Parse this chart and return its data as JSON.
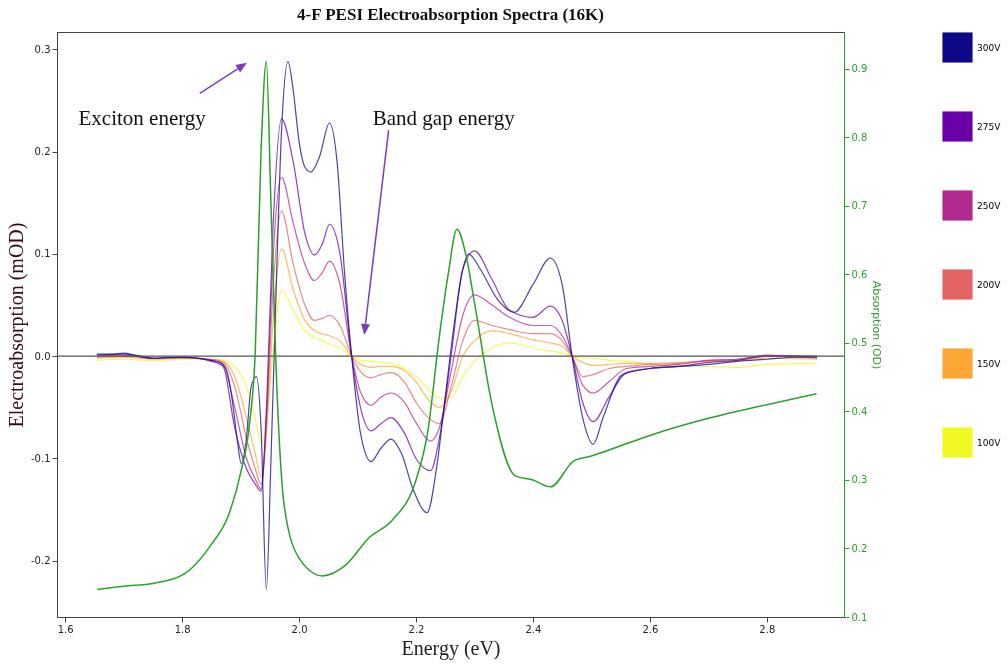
{
  "chart_data": {
    "type": "line",
    "title": "4-F PESI Electroabsorption Spectra (16K)",
    "xlabel": "Energy (eV)",
    "ylabel": "Electroabsorption (mOD)",
    "y2label": "Absorption (OD)",
    "xlim": [
      1.586,
      2.932
    ],
    "ylim": [
      -0.255,
      0.317
    ],
    "y2lim": [
      0.1,
      0.954
    ],
    "xticks": [
      1.6,
      1.8,
      {
        "value": 2,
        "label": "2.0"
      },
      2.2,
      2.4,
      2.6,
      2.8
    ],
    "yticks": [
      -0.2,
      -0.1,
      {
        "value": 0,
        "label": "0.0"
      },
      0.1,
      0.2,
      0.3
    ],
    "y2ticks": [
      0.1,
      0.2,
      0.3,
      0.4,
      0.5,
      0.6,
      0.7,
      0.8,
      0.9
    ],
    "legend": "right",
    "ref_lines": [
      {
        "axis": "y",
        "value": 0,
        "color": "#555555"
      }
    ],
    "annotations": [
      "Exciton energy",
      "Band gap energy"
    ],
    "series": [
      {
        "name": "100V",
        "color": "#f0f921",
        "x": [
          1.655,
          1.7,
          1.75,
          1.8,
          1.85,
          1.87,
          1.89,
          1.91,
          1.925,
          1.935,
          1.945,
          1.955,
          1.97,
          1.99,
          2.01,
          2.026,
          2.04,
          2.052,
          2.07,
          2.09,
          2.105,
          2.123,
          2.14,
          2.157,
          2.18,
          2.2,
          2.225,
          2.24,
          2.26,
          2.28,
          2.3,
          2.33,
          2.36,
          2.4,
          2.43,
          2.45,
          2.467,
          2.485,
          2.503,
          2.53,
          2.56,
          2.6,
          2.65,
          2.7,
          2.75,
          2.8,
          2.885
        ],
        "values": [
          -0.004,
          -0.003,
          -0.004,
          -0.003,
          -0.003,
          -0.004,
          -0.01,
          -0.03,
          -0.06,
          -0.085,
          -0.06,
          0.0,
          0.065,
          0.045,
          0.025,
          0.018,
          0.015,
          0.012,
          0.008,
          0.0,
          -0.004,
          -0.005,
          -0.006,
          -0.007,
          -0.012,
          -0.02,
          -0.035,
          -0.041,
          -0.04,
          -0.02,
          -0.005,
          0.008,
          0.013,
          0.008,
          0.005,
          0.003,
          0.0,
          -0.002,
          -0.002,
          -0.004,
          -0.005,
          -0.008,
          -0.01,
          -0.01,
          -0.011,
          -0.008,
          -0.007
        ]
      },
      {
        "name": "150V",
        "color": "#fca636",
        "x": [
          1.655,
          1.7,
          1.75,
          1.8,
          1.85,
          1.87,
          1.89,
          1.91,
          1.925,
          1.935,
          1.945,
          1.955,
          1.97,
          1.99,
          2.01,
          2.026,
          2.04,
          2.052,
          2.07,
          2.09,
          2.105,
          2.123,
          2.14,
          2.157,
          2.18,
          2.2,
          2.225,
          2.24,
          2.26,
          2.28,
          2.3,
          2.33,
          2.36,
          2.4,
          2.43,
          2.45,
          2.467,
          2.485,
          2.503,
          2.53,
          2.56,
          2.6,
          2.65,
          2.7,
          2.75,
          2.8,
          2.885
        ],
        "values": [
          -0.002,
          -0.001,
          -0.003,
          -0.002,
          -0.003,
          -0.005,
          -0.02,
          -0.06,
          -0.095,
          -0.118,
          -0.07,
          0.03,
          0.105,
          0.065,
          0.035,
          0.025,
          0.022,
          0.02,
          0.015,
          0.0,
          -0.008,
          -0.011,
          -0.01,
          -0.01,
          -0.014,
          -0.025,
          -0.045,
          -0.05,
          -0.035,
          0.0,
          0.015,
          0.025,
          0.022,
          0.016,
          0.013,
          0.01,
          0.0,
          -0.006,
          -0.009,
          -0.008,
          -0.007,
          -0.007,
          -0.006,
          -0.005,
          -0.004,
          -0.002,
          -0.003
        ]
      },
      {
        "name": "200V",
        "color": "#e16462",
        "x": [
          1.655,
          1.7,
          1.75,
          1.8,
          1.85,
          1.87,
          1.89,
          1.91,
          1.925,
          1.935,
          1.945,
          1.955,
          1.97,
          1.99,
          2.01,
          2.026,
          2.04,
          2.052,
          2.07,
          2.09,
          2.105,
          2.123,
          2.14,
          2.157,
          2.18,
          2.2,
          2.225,
          2.24,
          2.26,
          2.28,
          2.3,
          2.33,
          2.36,
          2.4,
          2.43,
          2.45,
          2.467,
          2.485,
          2.503,
          2.53,
          2.56,
          2.6,
          2.65,
          2.7,
          2.75,
          2.8,
          2.885
        ],
        "values": [
          -0.001,
          0.0,
          -0.002,
          -0.002,
          -0.003,
          -0.006,
          -0.03,
          -0.08,
          -0.11,
          -0.125,
          -0.06,
          0.06,
          0.142,
          0.09,
          0.05,
          0.035,
          0.037,
          0.04,
          0.03,
          0.0,
          -0.015,
          -0.021,
          -0.018,
          -0.016,
          -0.025,
          -0.045,
          -0.062,
          -0.066,
          -0.03,
          0.015,
          0.035,
          0.03,
          0.026,
          0.022,
          0.022,
          0.015,
          0.0,
          -0.02,
          -0.018,
          -0.012,
          -0.01,
          -0.008,
          -0.007,
          -0.004,
          -0.003,
          0.0,
          -0.002
        ]
      },
      {
        "name": "250V",
        "color": "#b12a90",
        "x": [
          1.655,
          1.7,
          1.75,
          1.8,
          1.85,
          1.87,
          1.89,
          1.91,
          1.925,
          1.935,
          1.945,
          1.955,
          1.97,
          1.99,
          2.01,
          2.026,
          2.04,
          2.052,
          2.07,
          2.09,
          2.105,
          2.123,
          2.14,
          2.157,
          2.18,
          2.2,
          2.225,
          2.24,
          2.26,
          2.28,
          2.3,
          2.33,
          2.36,
          2.4,
          2.43,
          2.45,
          2.467,
          2.485,
          2.503,
          2.53,
          2.56,
          2.6,
          2.65,
          2.7,
          2.75,
          2.8,
          2.885
        ],
        "values": [
          0.0,
          0.001,
          -0.002,
          -0.001,
          -0.004,
          -0.008,
          -0.05,
          -0.1,
          -0.12,
          -0.13,
          -0.05,
          0.09,
          0.175,
          0.13,
          0.09,
          0.074,
          0.082,
          0.093,
          0.07,
          0.0,
          -0.035,
          -0.048,
          -0.04,
          -0.036,
          -0.045,
          -0.065,
          -0.083,
          -0.07,
          -0.015,
          0.04,
          0.06,
          0.05,
          0.038,
          0.03,
          0.03,
          0.02,
          0.0,
          -0.028,
          -0.036,
          -0.025,
          -0.012,
          -0.01,
          -0.008,
          -0.004,
          -0.003,
          0.001,
          -0.001
        ]
      },
      {
        "name": "275V",
        "color": "#6a00a8",
        "x": [
          1.655,
          1.7,
          1.75,
          1.8,
          1.85,
          1.87,
          1.89,
          1.91,
          1.925,
          1.935,
          1.945,
          1.955,
          1.97,
          1.99,
          2.01,
          2.026,
          2.04,
          2.052,
          2.07,
          2.09,
          2.105,
          2.123,
          2.14,
          2.157,
          2.18,
          2.2,
          2.225,
          2.24,
          2.26,
          2.28,
          2.3,
          2.33,
          2.36,
          2.4,
          2.43,
          2.45,
          2.467,
          2.485,
          2.503,
          2.53,
          2.56,
          2.6,
          2.65,
          2.7,
          2.75,
          2.8,
          2.885
        ],
        "values": [
          0.001,
          0.002,
          -0.002,
          -0.001,
          -0.005,
          -0.01,
          -0.07,
          -0.11,
          -0.125,
          -0.132,
          -0.04,
          0.12,
          0.232,
          0.19,
          0.12,
          0.099,
          0.11,
          0.129,
          0.1,
          0.0,
          -0.05,
          -0.073,
          -0.066,
          -0.06,
          -0.075,
          -0.1,
          -0.112,
          -0.08,
          0.0,
          0.085,
          0.103,
          0.075,
          0.045,
          0.038,
          0.049,
          0.035,
          0.0,
          -0.045,
          -0.064,
          -0.04,
          -0.016,
          -0.012,
          -0.01,
          -0.006,
          -0.004,
          0.0,
          0.0
        ]
      },
      {
        "name": "300V",
        "color": "#0d0887",
        "x": [
          1.655,
          1.68,
          1.7,
          1.72,
          1.75,
          1.78,
          1.8,
          1.83,
          1.85,
          1.865,
          1.875,
          1.885,
          1.895,
          1.901,
          1.91,
          1.918,
          1.927,
          1.935,
          1.944,
          1.952,
          1.96,
          1.97,
          1.981,
          1.99,
          2.0,
          2.01,
          2.02,
          2.035,
          2.052,
          2.065,
          2.078,
          2.09,
          2.105,
          2.123,
          2.14,
          2.157,
          2.175,
          2.195,
          2.219,
          2.235,
          2.25,
          2.265,
          2.28,
          2.29,
          2.31,
          2.34,
          2.368,
          2.4,
          2.43,
          2.45,
          2.467,
          2.485,
          2.503,
          2.52,
          2.553,
          2.6,
          2.65,
          2.7,
          2.75,
          2.8,
          2.85,
          2.885
        ],
        "values": [
          0.002,
          0.002,
          0.003,
          0.001,
          -0.002,
          -0.001,
          -0.001,
          -0.002,
          -0.004,
          -0.006,
          -0.012,
          -0.04,
          -0.085,
          -0.105,
          -0.08,
          -0.03,
          -0.02,
          -0.07,
          -0.228,
          -0.1,
          0.05,
          0.22,
          0.288,
          0.26,
          0.21,
          0.185,
          0.18,
          0.195,
          0.228,
          0.19,
          0.08,
          0.0,
          -0.075,
          -0.103,
          -0.09,
          -0.081,
          -0.095,
          -0.13,
          -0.153,
          -0.11,
          -0.04,
          0.03,
          0.085,
          0.1,
          0.085,
          0.055,
          0.043,
          0.07,
          0.096,
          0.07,
          0.0,
          -0.06,
          -0.086,
          -0.06,
          -0.018,
          -0.012,
          -0.01,
          -0.008,
          -0.005,
          -0.003,
          -0.001,
          -0.001
        ]
      },
      {
        "color": "#2ca02c",
        "axis": "y2",
        "x": [
          1.655,
          1.7,
          1.75,
          1.8,
          1.85,
          1.88,
          1.9,
          1.915,
          1.925,
          1.935,
          1.944,
          1.952,
          1.96,
          1.975,
          2.0,
          2.04,
          2.08,
          2.12,
          2.16,
          2.2,
          2.22,
          2.24,
          2.255,
          2.27,
          2.285,
          2.3,
          2.33,
          2.37,
          2.4,
          2.43,
          2.47,
          2.5,
          2.55,
          2.6,
          2.7,
          2.8,
          2.885
        ],
        "values": [
          0.14,
          0.145,
          0.149,
          0.161,
          0.206,
          0.25,
          0.31,
          0.38,
          0.485,
          0.78,
          0.911,
          0.7,
          0.48,
          0.26,
          0.186,
          0.16,
          0.176,
          0.216,
          0.242,
          0.3,
          0.37,
          0.51,
          0.6,
          0.666,
          0.63,
          0.559,
          0.41,
          0.306,
          0.3,
          0.29,
          0.328,
          0.335,
          0.35,
          0.365,
          0.39,
          0.41,
          0.426
        ]
      }
    ]
  }
}
